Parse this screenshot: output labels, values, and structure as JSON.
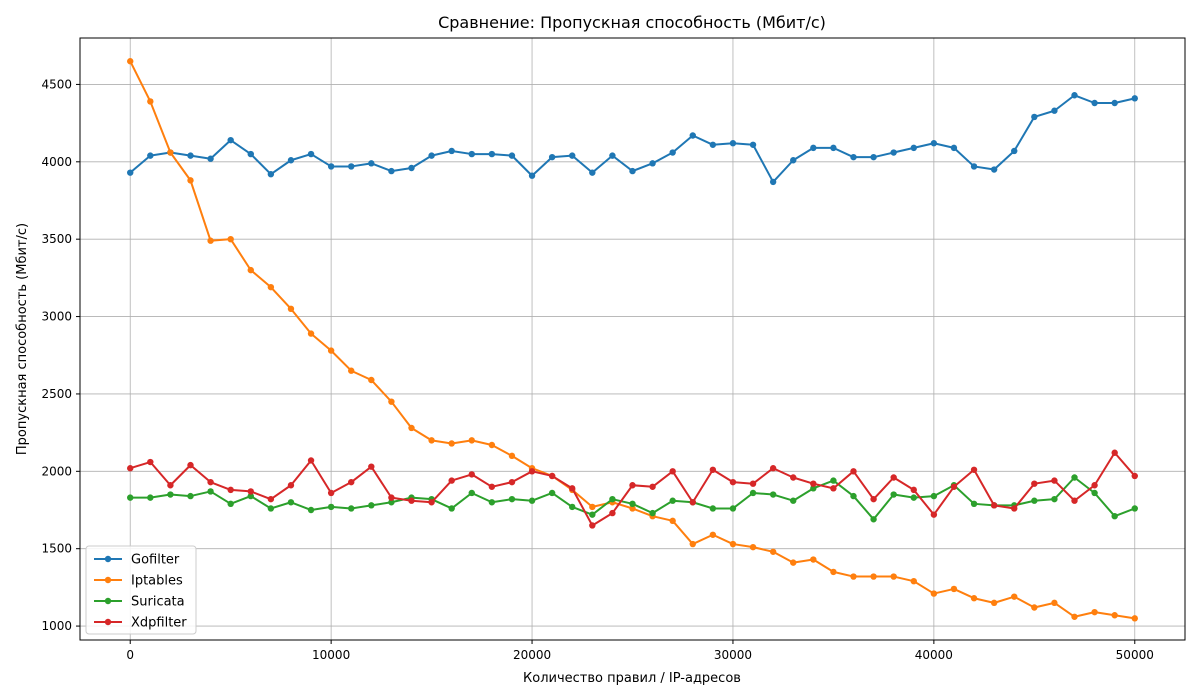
{
  "chart_data": {
    "type": "line",
    "title": "Сравнение: Пропускная способность (Мбит/с)",
    "xlabel": "Количество правил / IP-адресов",
    "ylabel": "Пропускная способность (Мбит/с)",
    "xlim": [
      -2500,
      52500
    ],
    "ylim": [
      910,
      4800
    ],
    "xticks": [
      0,
      10000,
      20000,
      30000,
      40000,
      50000
    ],
    "yticks": [
      1000,
      1500,
      2000,
      2500,
      3000,
      3500,
      4000,
      4500
    ],
    "grid": true,
    "legend_position": "bottom-left",
    "x": [
      0,
      1000,
      2000,
      3000,
      4000,
      5000,
      6000,
      7000,
      8000,
      9000,
      10000,
      11000,
      12000,
      13000,
      14000,
      15000,
      16000,
      17000,
      18000,
      19000,
      20000,
      21000,
      22000,
      23000,
      24000,
      25000,
      26000,
      27000,
      28000,
      29000,
      30000,
      31000,
      32000,
      33000,
      34000,
      35000,
      36000,
      37000,
      38000,
      39000,
      40000,
      41000,
      42000,
      43000,
      44000,
      45000,
      46000,
      47000,
      48000,
      49000,
      50000
    ],
    "series": [
      {
        "name": "Gofilter",
        "color": "#1f77b4",
        "values": [
          3930,
          4040,
          4060,
          4040,
          4020,
          4140,
          4050,
          3920,
          4010,
          4050,
          3970,
          3970,
          3990,
          3940,
          3960,
          4040,
          4070,
          4050,
          4050,
          4040,
          3910,
          4030,
          4040,
          3930,
          4040,
          3940,
          3990,
          4060,
          4170,
          4110,
          4120,
          4110,
          3870,
          4010,
          4090,
          4090,
          4030,
          4030,
          4060,
          4090,
          4120,
          4090,
          3970,
          3950,
          4070,
          4290,
          4330,
          4430,
          4380,
          4380,
          4410
        ]
      },
      {
        "name": "Iptables",
        "color": "#ff7f0e",
        "values": [
          4650,
          4390,
          4060,
          3880,
          3490,
          3500,
          3300,
          3190,
          3050,
          2890,
          2780,
          2650,
          2590,
          2450,
          2280,
          2200,
          2180,
          2200,
          2170,
          2100,
          2020,
          1970,
          1880,
          1770,
          1800,
          1760,
          1710,
          1680,
          1530,
          1590,
          1530,
          1510,
          1480,
          1410,
          1430,
          1350,
          1320,
          1320,
          1320,
          1290,
          1210,
          1240,
          1180,
          1150,
          1190,
          1120,
          1150,
          1060,
          1090,
          1070,
          1050
        ]
      },
      {
        "name": "Suricata",
        "color": "#2ca02c",
        "values": [
          1830,
          1830,
          1850,
          1840,
          1870,
          1790,
          1840,
          1760,
          1800,
          1750,
          1770,
          1760,
          1780,
          1800,
          1830,
          1820,
          1760,
          1860,
          1800,
          1820,
          1810,
          1860,
          1770,
          1720,
          1820,
          1790,
          1730,
          1810,
          1800,
          1760,
          1760,
          1860,
          1850,
          1810,
          1890,
          1940,
          1840,
          1690,
          1850,
          1830,
          1840,
          1910,
          1790,
          1780,
          1780,
          1810,
          1820,
          1960,
          1860,
          1710,
          1760
        ]
      },
      {
        "name": "Xdpfilter",
        "color": "#d62728",
        "values": [
          2020,
          2060,
          1910,
          2040,
          1930,
          1880,
          1870,
          1820,
          1910,
          2070,
          1860,
          1930,
          2030,
          1830,
          1810,
          1800,
          1940,
          1980,
          1900,
          1930,
          2000,
          1970,
          1890,
          1650,
          1730,
          1910,
          1900,
          2000,
          1800,
          2010,
          1930,
          1920,
          2020,
          1960,
          1920,
          1890,
          2000,
          1820,
          1960,
          1880,
          1720,
          1900,
          2010,
          1780,
          1760,
          1920,
          1940,
          1810,
          1910,
          2120,
          1970
        ]
      }
    ]
  }
}
